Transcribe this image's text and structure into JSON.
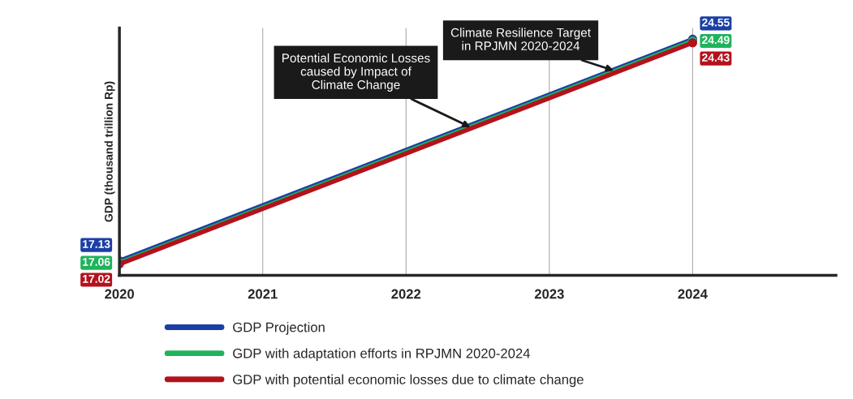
{
  "chart_data": {
    "type": "line",
    "ylabel": "GDP (thousand trillion Rp)",
    "x": [
      2020,
      2024
    ],
    "xlim": [
      2020,
      2025
    ],
    "xticks": [
      2020,
      2021,
      2022,
      2023,
      2024
    ],
    "tick_labels": "x",
    "grid": "x",
    "legend": "bottom",
    "marker": "circle",
    "line_style": "solid",
    "data_labels": true,
    "series": [
      {
        "name": "GDP Projection",
        "color": "#1a3fa6",
        "values": [
          17.13,
          24.55
        ]
      },
      {
        "name": "GDP with adaptation efforts in RPJMN 2020-2024",
        "color": "#1fb35b",
        "values": [
          17.06,
          24.49
        ]
      },
      {
        "name": "GDP with potential economic losses due to climate change",
        "color": "#b3121c",
        "values": [
          17.02,
          24.43
        ]
      }
    ],
    "annotations": [
      {
        "text": "Potential Economic Losses\ncaused by Impact of\nClimate Change",
        "x": 2022.45,
        "y": 21.6
      },
      {
        "text": "Climate Resilience Target\nin RPJMN 2020-2024",
        "x": 2023.45,
        "y": 23.5
      }
    ]
  }
}
